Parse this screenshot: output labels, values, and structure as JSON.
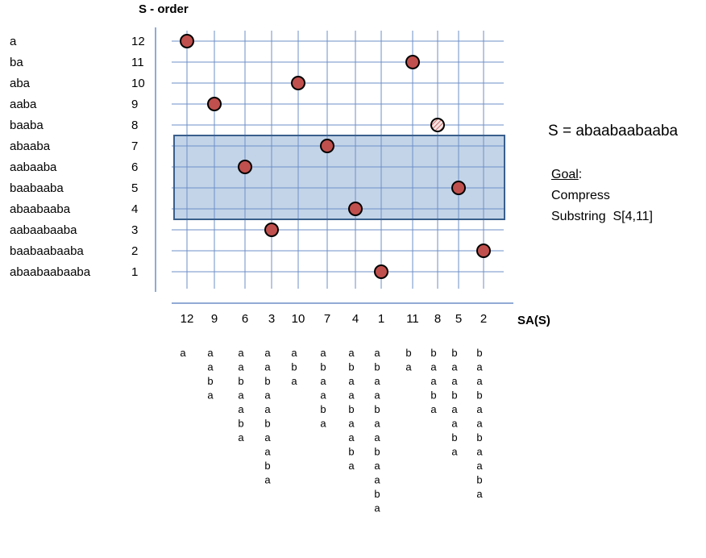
{
  "axis": {
    "y_title": "S - order",
    "x_title": "SA(S)"
  },
  "rows": [
    {
      "suffix": "a",
      "rank": "12"
    },
    {
      "suffix": "ba",
      "rank": "11"
    },
    {
      "suffix": "aba",
      "rank": "10"
    },
    {
      "suffix": "aaba",
      "rank": "9"
    },
    {
      "suffix": "baaba",
      "rank": "8"
    },
    {
      "suffix": "abaaba",
      "rank": "7"
    },
    {
      "suffix": "aabaaba",
      "rank": "6"
    },
    {
      "suffix": "baabaaba",
      "rank": "5"
    },
    {
      "suffix": "abaabaaba",
      "rank": "4"
    },
    {
      "suffix": "aabaabaaba",
      "rank": "3"
    },
    {
      "suffix": "baabaabaaba",
      "rank": "2"
    },
    {
      "suffix": "abaabaabaaba",
      "rank": "1"
    }
  ],
  "columns": [
    {
      "sa": "12",
      "suffix": "a"
    },
    {
      "sa": "9",
      "suffix": "aaba"
    },
    {
      "sa": "6",
      "suffix": "aabaaba"
    },
    {
      "sa": "3",
      "suffix": "aabaabaaba"
    },
    {
      "sa": "10",
      "suffix": "aba"
    },
    {
      "sa": "7",
      "suffix": "abaaba"
    },
    {
      "sa": "4",
      "suffix": "abaabaaba"
    },
    {
      "sa": "1",
      "suffix": "abaabaabaaba"
    },
    {
      "sa": "11",
      "suffix": "ba"
    },
    {
      "sa": "8",
      "suffix": "baaba"
    },
    {
      "sa": "5",
      "suffix": "baabaaba"
    },
    {
      "sa": "2",
      "suffix": "baabaabaaba"
    }
  ],
  "points": [
    {
      "sa": 12,
      "rank": 12,
      "style": "solid"
    },
    {
      "sa": 9,
      "rank": 9,
      "style": "solid"
    },
    {
      "sa": 6,
      "rank": 6,
      "style": "solid"
    },
    {
      "sa": 3,
      "rank": 3,
      "style": "solid"
    },
    {
      "sa": 10,
      "rank": 10,
      "style": "solid"
    },
    {
      "sa": 7,
      "rank": 7,
      "style": "solid"
    },
    {
      "sa": 4,
      "rank": 4,
      "style": "solid"
    },
    {
      "sa": 1,
      "rank": 1,
      "style": "solid"
    },
    {
      "sa": 11,
      "rank": 11,
      "style": "solid"
    },
    {
      "sa": 8,
      "rank": 8,
      "style": "hatched"
    },
    {
      "sa": 5,
      "rank": 5,
      "style": "solid"
    },
    {
      "sa": 2,
      "rank": 2,
      "style": "solid"
    }
  ],
  "highlight_range": {
    "rank_low": 4,
    "rank_high": 7
  },
  "string_label": "S = abaabaabaaba",
  "goal": {
    "heading": "Goal",
    "colon": ":",
    "line1": "Compress",
    "line2": "Substring  S[4,11]"
  },
  "colors": {
    "grid": "#6d8fc7",
    "point_fill": "#c0504d",
    "point_stroke": "#000000",
    "highlight_fill": "#b8cce4",
    "highlight_stroke": "#3a5f8c"
  }
}
